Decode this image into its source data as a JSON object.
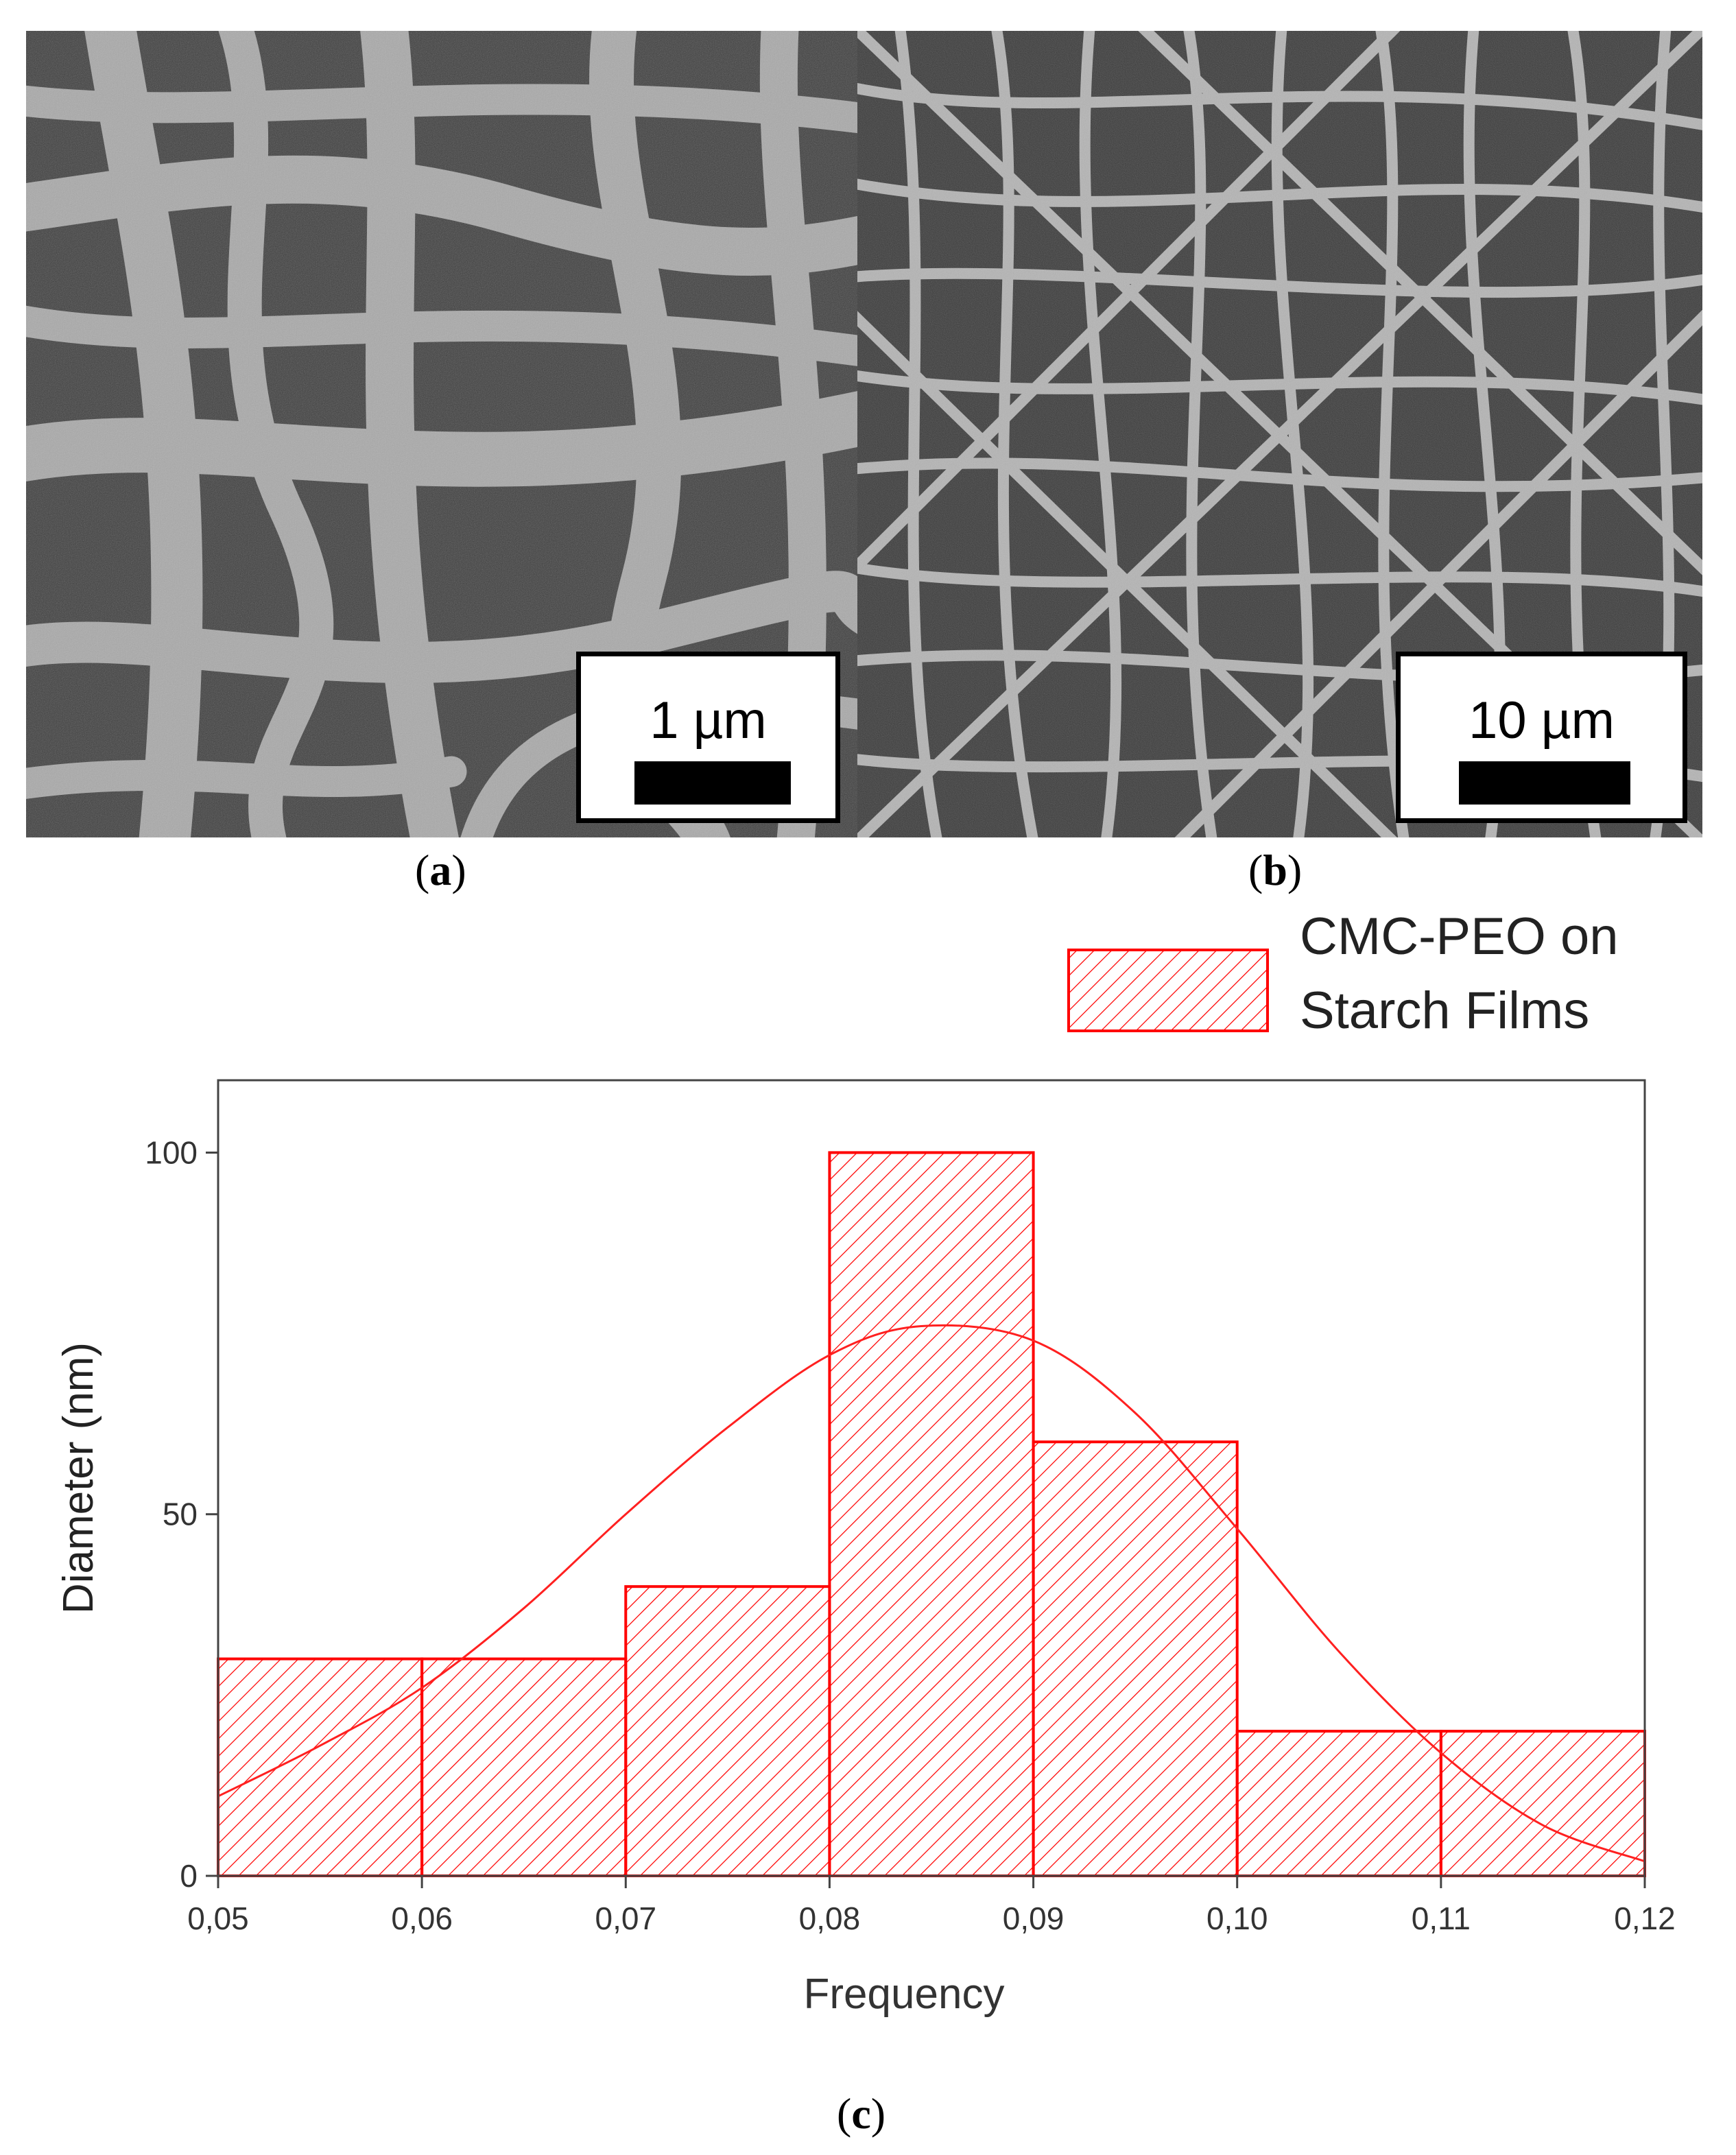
{
  "panels": {
    "a": {
      "label": "a",
      "scale_bar_text": "1 µm"
    },
    "b": {
      "label": "b",
      "scale_bar_text": "10 µm"
    },
    "c": {
      "label": "c"
    }
  },
  "colors": {
    "series": "#ff0000",
    "axis": "#444444"
  },
  "chart_data": {
    "type": "bar",
    "title": "",
    "xlabel": "Frequency",
    "ylabel": "Diameter (nm)",
    "x_ticks": [
      "0,05",
      "0,06",
      "0,07",
      "0,08",
      "0,09",
      "0,10",
      "0,11",
      "0,12"
    ],
    "y_ticks": [
      "0",
      "50",
      "100"
    ],
    "xlim": [
      0.05,
      0.12
    ],
    "ylim": [
      0,
      110
    ],
    "legend": {
      "position": "top-right",
      "entries": [
        "CMC-PEO on Starch Films"
      ]
    },
    "series": [
      {
        "name": "CMC-PEO on Starch Films",
        "bins": [
          {
            "x0": 0.05,
            "x1": 0.06,
            "value": 30
          },
          {
            "x0": 0.06,
            "x1": 0.07,
            "value": 30
          },
          {
            "x0": 0.07,
            "x1": 0.08,
            "value": 40
          },
          {
            "x0": 0.08,
            "x1": 0.09,
            "value": 100
          },
          {
            "x0": 0.09,
            "x1": 0.1,
            "value": 60
          },
          {
            "x0": 0.1,
            "x1": 0.11,
            "value": 20
          },
          {
            "x0": 0.11,
            "x1": 0.12,
            "value": 20
          }
        ],
        "fit_curve": {
          "type": "normal",
          "x": [
            0.05,
            0.055,
            0.06,
            0.065,
            0.07,
            0.075,
            0.08,
            0.0845,
            0.09,
            0.095,
            0.1,
            0.105,
            0.11,
            0.115,
            0.12
          ],
          "y": [
            11,
            18,
            26,
            37,
            50,
            62,
            72,
            76,
            74,
            64,
            48,
            31,
            17,
            7,
            2
          ]
        }
      }
    ],
    "grid": false
  }
}
